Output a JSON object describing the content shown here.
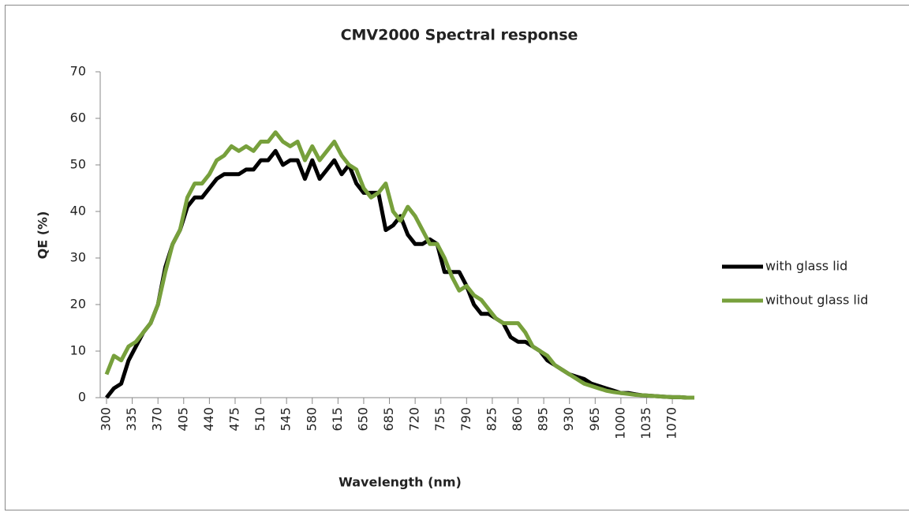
{
  "chart_data": {
    "type": "line",
    "title": "CMV2000 Spectral response",
    "x_label": "Wavelength (nm)",
    "y_label": "QE (%)",
    "x": [
      300,
      310,
      320,
      330,
      340,
      350,
      360,
      370,
      380,
      390,
      400,
      410,
      420,
      430,
      440,
      450,
      460,
      470,
      480,
      490,
      500,
      510,
      520,
      530,
      540,
      550,
      560,
      570,
      580,
      590,
      600,
      610,
      620,
      630,
      640,
      650,
      660,
      670,
      680,
      690,
      700,
      710,
      720,
      730,
      740,
      750,
      760,
      770,
      780,
      790,
      800,
      810,
      820,
      830,
      840,
      850,
      860,
      870,
      880,
      890,
      900,
      910,
      920,
      930,
      940,
      950,
      960,
      970,
      980,
      990,
      1000,
      1010,
      1020,
      1030,
      1040,
      1050,
      1060,
      1070,
      1080,
      1090,
      1100
    ],
    "series": [
      {
        "name": "with glass lid",
        "color": "#000000",
        "values": [
          0,
          2,
          3,
          8,
          11,
          14,
          16,
          20,
          28,
          33,
          36,
          41,
          43,
          43,
          45,
          47,
          48,
          48,
          48,
          49,
          49,
          51,
          51,
          53,
          50,
          51,
          51,
          47,
          51,
          47,
          49,
          51,
          48,
          50,
          46,
          44,
          44,
          44,
          36,
          37,
          39,
          35,
          33,
          33,
          34,
          33,
          27,
          27,
          27,
          24,
          20,
          18,
          18,
          17,
          16,
          13,
          12,
          12,
          11,
          10,
          8,
          7,
          6,
          5,
          4.5,
          4,
          3,
          2.5,
          2,
          1.5,
          1,
          1,
          0.7,
          0.5,
          0.4,
          0.3,
          0.2,
          0.1,
          0.1,
          0,
          0
        ]
      },
      {
        "name": "without glass lid",
        "color": "#77a03c",
        "values": [
          5,
          9,
          8,
          11,
          12,
          14,
          16,
          20,
          27,
          33,
          36,
          43,
          46,
          46,
          48,
          51,
          52,
          54,
          53,
          54,
          53,
          55,
          55,
          57,
          55,
          54,
          55,
          51,
          54,
          51,
          53,
          55,
          52,
          50,
          49,
          45,
          43,
          44,
          46,
          40,
          38,
          41,
          39,
          36,
          33,
          33,
          30,
          26,
          23,
          24,
          22,
          21,
          19,
          17,
          16,
          16,
          16,
          14,
          11,
          10,
          9,
          7,
          6,
          5,
          4,
          3,
          2.5,
          2,
          1.5,
          1.2,
          1,
          0.8,
          0.6,
          0.5,
          0.4,
          0.3,
          0.2,
          0.1,
          0.1,
          0,
          0
        ]
      }
    ],
    "xlim": [
      300,
      1100
    ],
    "xticks": [
      300,
      335,
      370,
      405,
      440,
      475,
      510,
      545,
      580,
      615,
      650,
      685,
      720,
      755,
      790,
      825,
      860,
      895,
      930,
      965,
      1000,
      1035,
      1070
    ],
    "ylim": [
      0,
      70
    ],
    "yticks": [
      0,
      10,
      20,
      30,
      40,
      50,
      60,
      70
    ],
    "grid": false,
    "legend": "right"
  }
}
